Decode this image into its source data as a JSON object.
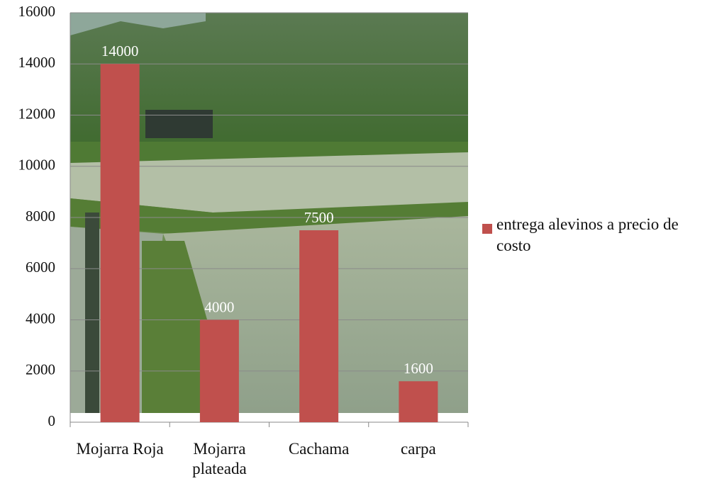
{
  "chart_data": {
    "type": "bar",
    "categories": [
      "Mojarra Roja",
      "Mojarra plateada",
      "Cachama",
      "carpa"
    ],
    "series": [
      {
        "name": "entrega alevinos a precio de costo",
        "color": "#c0504d",
        "values": [
          14000,
          4000,
          7500,
          1600
        ]
      }
    ],
    "ylim": [
      0,
      16000
    ],
    "yticks": [
      0,
      2000,
      4000,
      6000,
      8000,
      10000,
      12000,
      14000,
      16000
    ],
    "grid": true,
    "legend": "right"
  }
}
